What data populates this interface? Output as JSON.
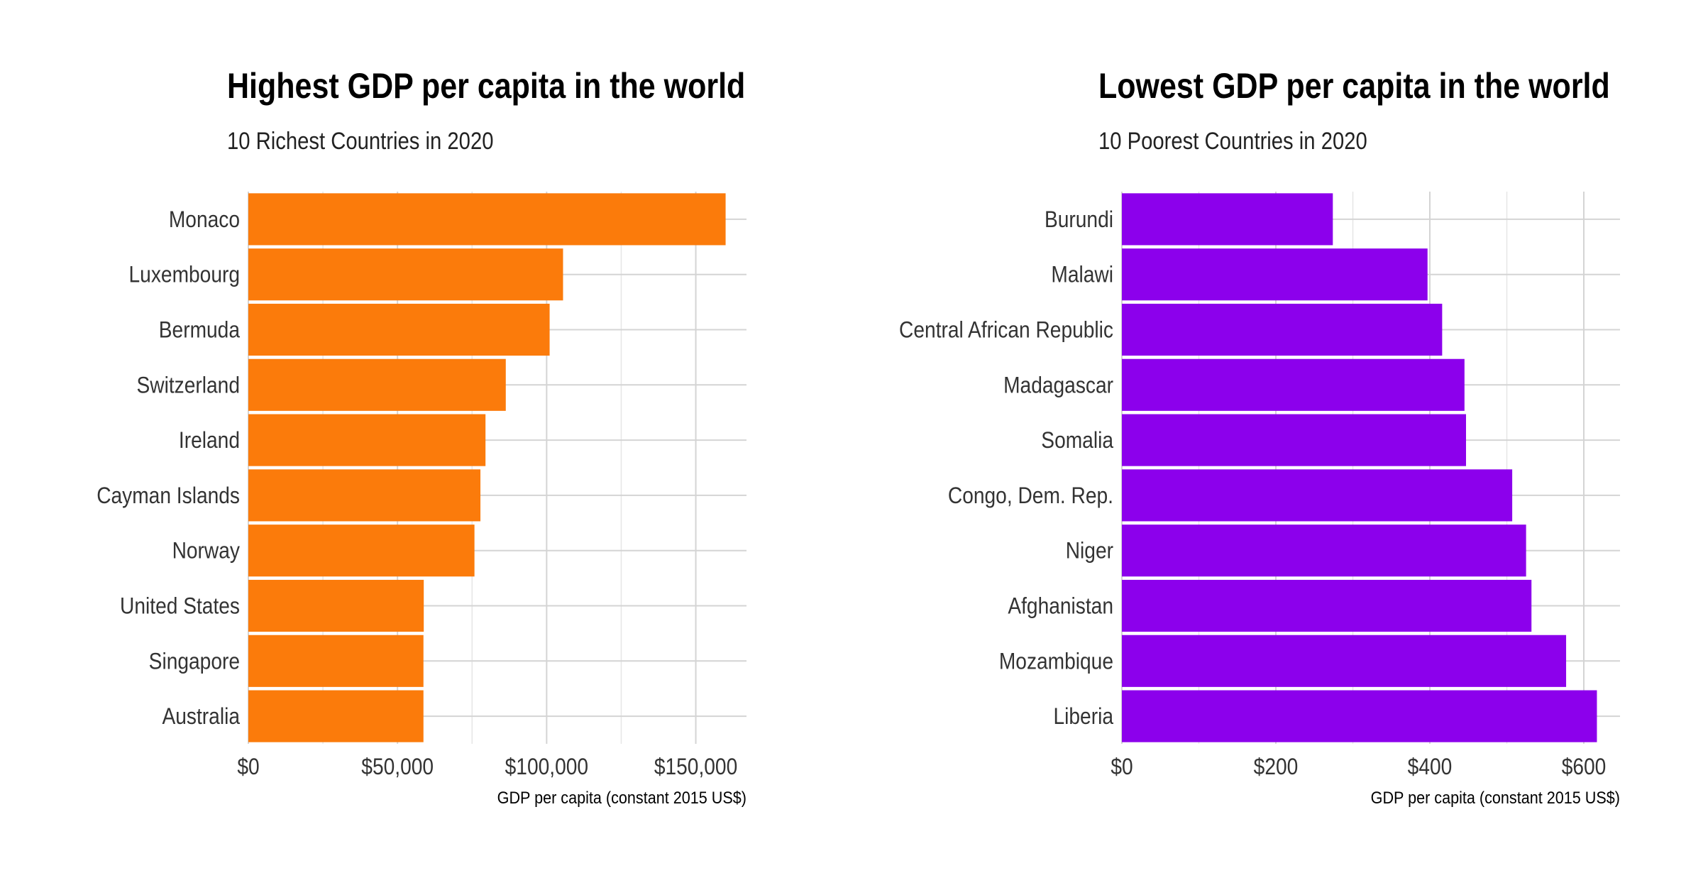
{
  "chart_data": [
    {
      "type": "bar",
      "orientation": "horizontal",
      "title": "Highest GDP per capita in the world",
      "subtitle": "10 Richest Countries in 2020",
      "xlabel": "GDP per capita (constant 2015 US$)",
      "categories": [
        "Monaco",
        "Luxembourg",
        "Bermuda",
        "Switzerland",
        "Ireland",
        "Cayman Islands",
        "Norway",
        "United States",
        "Singapore",
        "Australia"
      ],
      "values": [
        160000,
        105500,
        101000,
        86300,
        79500,
        77800,
        75800,
        58800,
        58700,
        58700
      ],
      "xlim": [
        0,
        167000
      ],
      "xticks": [
        0,
        50000,
        100000,
        150000
      ],
      "xtick_labels": [
        "$0",
        "$50,000",
        "$100,000",
        "$150,000"
      ],
      "color": "#fb7b0b",
      "grid": true
    },
    {
      "type": "bar",
      "orientation": "horizontal",
      "title": "Lowest GDP per capita in the world",
      "subtitle": "10 Poorest Countries in 2020",
      "xlabel": "GDP per capita (constant 2015 US$)",
      "categories": [
        "Burundi",
        "Malawi",
        "Central African Republic",
        "Madagascar",
        "Somalia",
        "Congo, Dem. Rep.",
        "Niger",
        "Afghanistan",
        "Mozambique",
        "Liberia"
      ],
      "values": [
        274,
        397,
        416,
        445,
        447,
        507,
        525,
        532,
        577,
        617
      ],
      "xlim": [
        0,
        647
      ],
      "xticks": [
        0,
        200,
        400,
        600
      ],
      "xtick_labels": [
        "$0",
        "$200",
        "$400",
        "$600"
      ],
      "color": "#8c00ec",
      "grid": true
    }
  ]
}
